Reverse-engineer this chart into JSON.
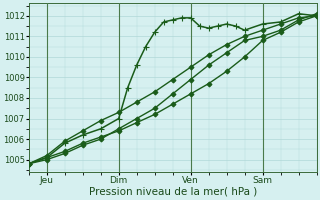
{
  "xlabel": "Pression niveau de la mer( hPa )",
  "bg_color": "#d6f0f0",
  "grid_color": "#b0d8d8",
  "line_color": "#1a5c1a",
  "ylim": [
    1004.4,
    1012.6
  ],
  "xlim": [
    0,
    96
  ],
  "yticks": [
    1005,
    1006,
    1007,
    1008,
    1009,
    1010,
    1011,
    1012
  ],
  "xtick_positions": [
    6,
    30,
    54,
    78
  ],
  "xtick_labels": [
    "Jeu",
    "Dim",
    "Ven",
    "Sam"
  ],
  "vlines": [
    6,
    30,
    54,
    78
  ],
  "series": [
    {
      "x": [
        0,
        6,
        12,
        18,
        24,
        30,
        33,
        36,
        39,
        42,
        45,
        48,
        51,
        54,
        57,
        60,
        63,
        66,
        69,
        72,
        78,
        84,
        90,
        96
      ],
      "y": [
        1004.8,
        1005.1,
        1005.8,
        1006.2,
        1006.5,
        1007.0,
        1008.5,
        1009.6,
        1010.5,
        1011.2,
        1011.7,
        1011.8,
        1011.9,
        1011.9,
        1011.5,
        1011.4,
        1011.5,
        1011.6,
        1011.5,
        1011.3,
        1011.6,
        1011.7,
        1012.1,
        1012.0
      ],
      "style": "-",
      "marker": "+",
      "ms": 4,
      "lw": 1.1
    },
    {
      "x": [
        0,
        6,
        12,
        18,
        24,
        30,
        36,
        42,
        48,
        54,
        60,
        66,
        72,
        78,
        84,
        90,
        96
      ],
      "y": [
        1004.8,
        1005.1,
        1005.4,
        1005.8,
        1006.1,
        1006.4,
        1006.8,
        1007.2,
        1007.7,
        1008.2,
        1008.7,
        1009.3,
        1010.0,
        1010.8,
        1011.2,
        1011.7,
        1012.0
      ],
      "style": "-",
      "marker": "D",
      "ms": 2.5,
      "lw": 1.0
    },
    {
      "x": [
        0,
        6,
        12,
        18,
        24,
        30,
        36,
        42,
        48,
        54,
        60,
        66,
        72,
        78,
        84,
        90,
        96
      ],
      "y": [
        1004.8,
        1005.0,
        1005.3,
        1005.7,
        1006.0,
        1006.5,
        1007.0,
        1007.5,
        1008.2,
        1008.9,
        1009.6,
        1010.2,
        1010.8,
        1011.0,
        1011.3,
        1011.8,
        1012.1
      ],
      "style": "-",
      "marker": "D",
      "ms": 2.5,
      "lw": 1.0
    },
    {
      "x": [
        0,
        6,
        12,
        18,
        24,
        30,
        36,
        42,
        48,
        54,
        60,
        66,
        72,
        78,
        84,
        90,
        96
      ],
      "y": [
        1004.8,
        1005.2,
        1005.9,
        1006.4,
        1006.9,
        1007.3,
        1007.8,
        1008.3,
        1008.9,
        1009.5,
        1010.1,
        1010.6,
        1011.0,
        1011.3,
        1011.6,
        1011.9,
        1012.0
      ],
      "style": "-",
      "marker": "D",
      "ms": 2.5,
      "lw": 1.0
    }
  ]
}
